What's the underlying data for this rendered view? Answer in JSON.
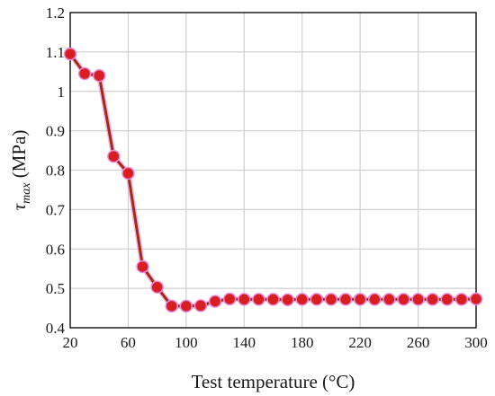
{
  "chart_data": {
    "type": "line",
    "xlabel": "Test temperature (°C)",
    "ylabel": {
      "symbol": "τ",
      "subscript": "max",
      "unit": " (MPa)"
    },
    "xlim": [
      20,
      300
    ],
    "ylim": [
      0.4,
      1.2
    ],
    "x_ticks": [
      "20",
      "60",
      "100",
      "140",
      "180",
      "220",
      "260",
      "300"
    ],
    "y_ticks": [
      "0.4",
      "0.5",
      "0.6",
      "0.7",
      "0.8",
      "0.9",
      "1",
      "1.1",
      "1.2"
    ],
    "grid": true,
    "colors": {
      "line": "#a52a10",
      "marker": "#d81e1e",
      "marker_halo": "#e68ce0",
      "grid": "#d0d0d0",
      "frame": "#000000"
    },
    "series": [
      {
        "x": [
          20,
          30,
          40,
          50,
          60,
          70,
          80,
          90,
          100,
          110,
          120,
          130,
          140,
          150,
          160,
          170,
          180,
          190,
          200,
          210,
          220,
          230,
          240,
          250,
          260,
          270,
          280,
          290,
          300
        ],
        "values": [
          1.095,
          1.045,
          1.04,
          0.835,
          0.792,
          0.555,
          0.503,
          0.455,
          0.455,
          0.456,
          0.467,
          0.473,
          0.472,
          0.472,
          0.472,
          0.471,
          0.472,
          0.472,
          0.472,
          0.472,
          0.472,
          0.472,
          0.472,
          0.472,
          0.472,
          0.472,
          0.472,
          0.472,
          0.473
        ]
      }
    ]
  }
}
